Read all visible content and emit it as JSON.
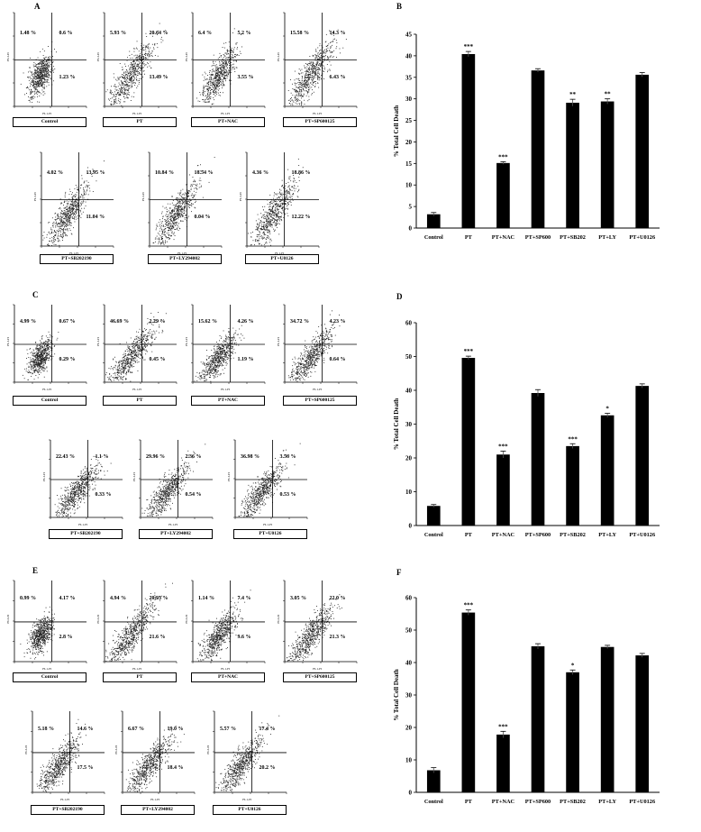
{
  "panels": {
    "A": {
      "letter": "A",
      "plots": [
        {
          "label": "Control",
          "q": [
            "1.48 %",
            "0.6 %",
            "",
            "1.23 %"
          ]
        },
        {
          "label": "PT",
          "q": [
            "5.93 %",
            "20.64 %",
            "",
            "13.49 %"
          ]
        },
        {
          "label": "PT+NAC",
          "q": [
            "6.4 %",
            "5.2 %",
            "",
            "3.55 %"
          ]
        },
        {
          "label": "PT+SP600125",
          "q": [
            "15.58 %",
            "14.3 %",
            "",
            "6.43 %"
          ]
        },
        {
          "label": "PT+SB202190",
          "q": [
            "4.02 %",
            "13.95 %",
            "",
            "11.04 %"
          ]
        },
        {
          "label": "PT+LY294002",
          "q": [
            "10.84 %",
            "18.54 %",
            "",
            "0.04 %"
          ]
        },
        {
          "label": "PT+U0126",
          "q": [
            "4.36 %",
            "18.86 %",
            "",
            "12.22 %"
          ]
        }
      ]
    },
    "C": {
      "letter": "C",
      "plots": [
        {
          "label": "Control",
          "q": [
            "4.99 %",
            "0.67 %",
            "",
            "0.29 %"
          ]
        },
        {
          "label": "PT",
          "q": [
            "46.69 %",
            "2.29 %",
            "",
            "0.45 %"
          ]
        },
        {
          "label": "PT+NAC",
          "q": [
            "15.62 %",
            "4.26 %",
            "",
            "1.19 %"
          ]
        },
        {
          "label": "PT+SP600125",
          "q": [
            "34.72 %",
            "4.23 %",
            "",
            "0.64 %"
          ]
        },
        {
          "label": "PT+SB202190",
          "q": [
            "22.43 %",
            "1.1 %",
            "",
            "0.33 %"
          ]
        },
        {
          "label": "PT+LY294002",
          "q": [
            "29.96 %",
            "2.36 %",
            "",
            "0.54 %"
          ]
        },
        {
          "label": "PT+U0126",
          "q": [
            "36.98 %",
            "3.56 %",
            "",
            "0.53 %"
          ]
        }
      ]
    },
    "E": {
      "letter": "E",
      "plots": [
        {
          "label": "Control",
          "q": [
            "0.99 %",
            "4.17 %",
            "",
            "2.8 %"
          ]
        },
        {
          "label": "PT",
          "q": [
            "4.94 %",
            "29.93 %",
            "",
            "21.6 %"
          ]
        },
        {
          "label": "PT+NAC",
          "q": [
            "1.14 %",
            "7.4 %",
            "",
            "9.6 %"
          ]
        },
        {
          "label": "PT+SP600125",
          "q": [
            "3.05 %",
            "22.0 %",
            "",
            "21.3 %"
          ]
        },
        {
          "label": "PT+SB202190",
          "q": [
            "5.18 %",
            "14.6 %",
            "",
            "17.5 %"
          ]
        },
        {
          "label": "PT+LY294002",
          "q": [
            "6.67 %",
            "19.0 %",
            "",
            "18.4 %"
          ]
        },
        {
          "label": "PT+U0126",
          "q": [
            "5.57 %",
            "17.4 %",
            "",
            "20.2 %"
          ]
        }
      ]
    },
    "axis_labels": {
      "x": "FL1-H",
      "y": "FL3-H"
    }
  },
  "chart_data": [
    {
      "panel": "B",
      "type": "bar",
      "ylabel": "% Total Cell Death",
      "categories": [
        "Control",
        "PT",
        "PT+NAC",
        "PT+SP600",
        "PT+SB202",
        "PT+LY",
        "PT+U0126"
      ],
      "values": [
        3.2,
        40.4,
        15.1,
        36.6,
        29.1,
        29.4,
        35.6
      ],
      "errors": [
        0.4,
        0.6,
        0.3,
        0.4,
        0.8,
        0.6,
        0.5
      ],
      "significance": [
        "",
        "***",
        "***",
        "",
        "**",
        "**",
        ""
      ],
      "ylim": [
        0,
        45
      ],
      "yticks": [
        0,
        5,
        10,
        15,
        20,
        25,
        30,
        35,
        40,
        45
      ]
    },
    {
      "panel": "D",
      "type": "bar",
      "ylabel": "% Total Cell Death",
      "categories": [
        "Control",
        "PT",
        "PT+NAC",
        "PT+SP600",
        "PT+SB202",
        "PT+LY",
        "PT+U0126"
      ],
      "values": [
        5.8,
        49.6,
        21.0,
        39.2,
        23.5,
        32.6,
        41.3
      ],
      "errors": [
        0.4,
        0.5,
        1.0,
        1.0,
        0.7,
        0.6,
        0.6
      ],
      "significance": [
        "",
        "***",
        "***",
        "",
        "***",
        "*",
        ""
      ],
      "ylim": [
        0,
        60
      ],
      "yticks": [
        0,
        10,
        20,
        30,
        40,
        50,
        60
      ]
    },
    {
      "panel": "F",
      "type": "bar",
      "ylabel": "% Total Cell Death",
      "categories": [
        "Control",
        "PT",
        "PT+NAC",
        "PT+SP600",
        "PT+SB202",
        "PT+LY",
        "PT+U0126"
      ],
      "values": [
        6.8,
        55.4,
        17.8,
        45.0,
        37.0,
        44.8,
        42.2
      ],
      "errors": [
        0.8,
        0.8,
        1.0,
        0.8,
        0.7,
        0.5,
        0.6
      ],
      "significance": [
        "",
        "***",
        "***",
        "",
        "*",
        "",
        ""
      ],
      "ylim": [
        0,
        60
      ],
      "yticks": [
        0,
        10,
        20,
        30,
        40,
        50,
        60
      ]
    }
  ]
}
